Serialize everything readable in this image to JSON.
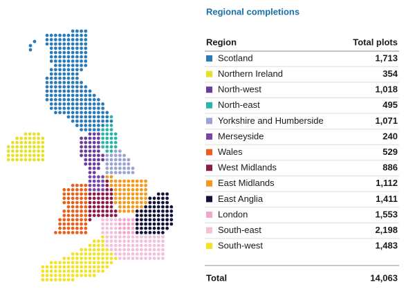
{
  "title": "Regional completions",
  "table": {
    "header": [
      "Region",
      "Total plots"
    ],
    "rows": [
      {
        "name": "Scotland",
        "value": "1,713",
        "color": "#2a7ab8"
      },
      {
        "name": "Northern Ireland",
        "value": "354",
        "color": "#e8e12a"
      },
      {
        "name": "North-west",
        "value": "1,018",
        "color": "#6a3d9a"
      },
      {
        "name": "North-east",
        "value": "495",
        "color": "#2bb5a8"
      },
      {
        "name": "Yorkshire and Humberside",
        "value": "1,071",
        "color": "#9aa3d6"
      },
      {
        "name": "Merseyside",
        "value": "240",
        "color": "#7a45a8"
      },
      {
        "name": "Wales",
        "value": "529",
        "color": "#e8601c"
      },
      {
        "name": "West Midlands",
        "value": "886",
        "color": "#8c1a4b"
      },
      {
        "name": "East Midlands",
        "value": "1,112",
        "color": "#f39a1e"
      },
      {
        "name": "East Anglia",
        "value": "1,411",
        "color": "#12123a"
      },
      {
        "name": "London",
        "value": "1,553",
        "color": "#f0a8cc"
      },
      {
        "name": "South-east",
        "value": "2,198",
        "color": "#f2c2dc"
      },
      {
        "name": "South-west",
        "value": "1,483",
        "color": "#f2e32a"
      }
    ],
    "total": {
      "name": "Total",
      "value": "14,063"
    }
  }
}
